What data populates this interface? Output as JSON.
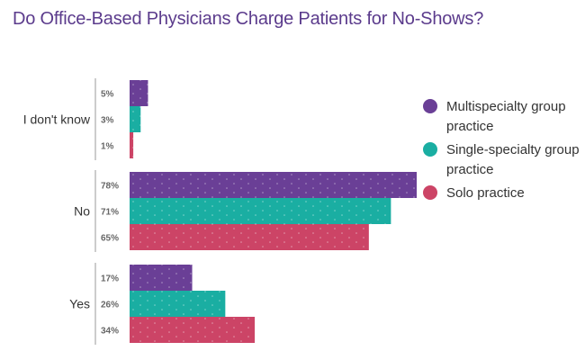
{
  "title": "Do Office-Based Physicians Charge Patients for No-Shows?",
  "chart_data": {
    "type": "bar",
    "orientation": "horizontal",
    "title": "Do Office-Based Physicians Charge Patients for No-Shows?",
    "categories": [
      "I don't know",
      "No",
      "Yes"
    ],
    "series": [
      {
        "name": "Multispecialty group practice",
        "color": "#6a3f96",
        "values": [
          5,
          78,
          17
        ],
        "labels": [
          "5%",
          "78%",
          "17%"
        ]
      },
      {
        "name": "Single-specialty group practice",
        "color": "#1aaea2",
        "values": [
          3,
          71,
          26
        ],
        "labels": [
          "3%",
          "71%",
          "26%"
        ]
      },
      {
        "name": "Solo practice",
        "color": "#cc4466",
        "values": [
          1,
          65,
          34
        ],
        "labels": [
          "1%",
          "65%",
          "34%"
        ]
      }
    ],
    "xlim": [
      0,
      80
    ],
    "grid": false,
    "legend_position": "right",
    "units": "%"
  }
}
